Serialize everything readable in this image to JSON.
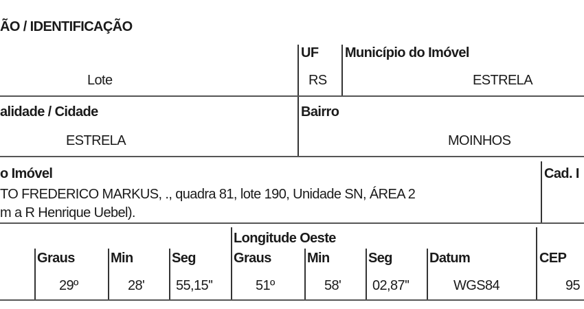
{
  "section_title": "ÃO / IDENTIFICAÇÃO",
  "row1": {
    "lote_value": "Lote",
    "uf_label": "UF",
    "uf_value": "RS",
    "municipio_label": "Município do Imóvel",
    "municipio_value": "ESTRELA"
  },
  "row2": {
    "localidade_label": "alidade / Cidade",
    "localidade_value": "ESTRELA",
    "bairro_label": "Bairro",
    "bairro_value": "MOINHOS"
  },
  "row3": {
    "endereco_label": "o Imóvel",
    "endereco_line1": "TO FREDERICO MARKUS, ., quadra 81, lote 190, Unidade SN, ÁREA 2",
    "endereco_line2": "m a R Henrique Uebel).",
    "cad_label": "Cad. I"
  },
  "row4": {
    "longitude_label": "Longitude Oeste",
    "lat_graus_label": "Graus",
    "lat_graus_value": "29º",
    "lat_min_label": "Min",
    "lat_min_value": "28'",
    "lat_seg_label": "Seg",
    "lat_seg_value": "55,15''",
    "lon_graus_label": "Graus",
    "lon_graus_value": "51º",
    "lon_min_label": "Min",
    "lon_min_value": "58'",
    "lon_seg_label": "Seg",
    "lon_seg_value": "02,87''",
    "datum_label": "Datum",
    "datum_value": "WGS84",
    "cep_label": "CEP",
    "cep_value": "95"
  }
}
